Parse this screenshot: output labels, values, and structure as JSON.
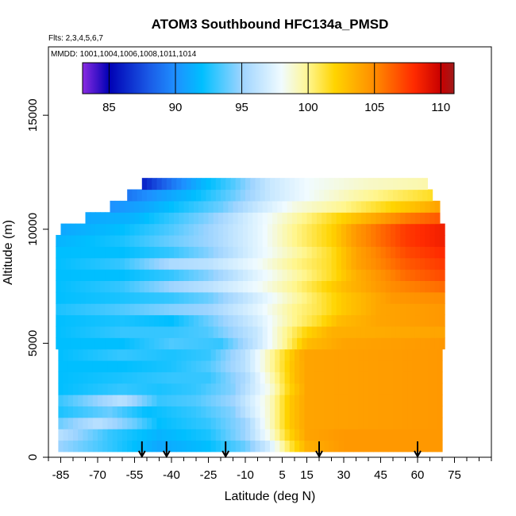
{
  "chart_data": {
    "type": "heatmap",
    "title": "ATOM3 Southbound HFC134a_PMSD",
    "flights_note": "Flts: 2,3,4,5,6,7",
    "dates_note": "MMDD: 1001,1004,1006,1008,1011,1014",
    "xlabel": "Latitude (deg N)",
    "ylabel": "Altitude (m)",
    "xlim": [
      -90,
      90
    ],
    "ylim": [
      0,
      18000
    ],
    "x_ticks": [
      -85,
      -70,
      -55,
      -40,
      -25,
      -10,
      5,
      15,
      30,
      45,
      60,
      75
    ],
    "x_tick_labels": [
      "-85",
      "-70",
      "-55",
      "-40",
      "-25",
      "-10",
      "5",
      "15",
      "30",
      "45",
      "60",
      "75"
    ],
    "y_ticks": [
      0,
      5000,
      10000,
      15000
    ],
    "y_tick_labels": [
      "0",
      "5000",
      "10000",
      "15000"
    ],
    "colorbar": {
      "range": [
        83,
        111
      ],
      "ticks": [
        85,
        90,
        95,
        100,
        105,
        110
      ],
      "tick_labels": [
        "85",
        "90",
        "95",
        "100",
        "105",
        "110"
      ]
    },
    "colors": {
      "stops": [
        [
          83,
          "#8a2be2"
        ],
        [
          85,
          "#0000b4"
        ],
        [
          88,
          "#1a5ae6"
        ],
        [
          90,
          "#1e90ff"
        ],
        [
          92,
          "#00bfff"
        ],
        [
          95,
          "#9ed4ff"
        ],
        [
          98,
          "#f0fbff"
        ],
        [
          100,
          "#fff68f"
        ],
        [
          102,
          "#ffd400"
        ],
        [
          105,
          "#ff8c00"
        ],
        [
          108,
          "#ff2a00"
        ],
        [
          110,
          "#c80000"
        ],
        [
          111,
          "#a01a1a"
        ]
      ]
    },
    "flight_crossings_lat": [
      -52,
      -42,
      -18,
      20,
      60
    ],
    "altitude_bands": [
      {
        "alt": 500,
        "lat": [
          -86,
          70
        ],
        "anchors": [
          [
            -86,
            95
          ],
          [
            -60,
            92.5
          ],
          [
            -45,
            91
          ],
          [
            -25,
            92
          ],
          [
            -10,
            94
          ],
          [
            0,
            97
          ],
          [
            8,
            101
          ],
          [
            15,
            103.5
          ],
          [
            30,
            104.5
          ],
          [
            60,
            104.5
          ],
          [
            70,
            104.5
          ]
        ]
      },
      {
        "alt": 1000,
        "lat": [
          -86,
          70
        ],
        "anchors": [
          [
            -86,
            96
          ],
          [
            -65,
            93
          ],
          [
            -45,
            91.5
          ],
          [
            -25,
            92.5
          ],
          [
            -10,
            95
          ],
          [
            0,
            98.5
          ],
          [
            8,
            102
          ],
          [
            15,
            104
          ],
          [
            30,
            104.5
          ],
          [
            70,
            104.5
          ]
        ]
      },
      {
        "alt": 1500,
        "lat": [
          -86,
          70
        ],
        "anchors": [
          [
            -86,
            94
          ],
          [
            -70,
            96
          ],
          [
            -55,
            94
          ],
          [
            -45,
            92
          ],
          [
            -25,
            93
          ],
          [
            -10,
            95
          ],
          [
            0,
            99
          ],
          [
            8,
            102.5
          ],
          [
            15,
            104
          ],
          [
            70,
            104.5
          ]
        ]
      },
      {
        "alt": 2000,
        "lat": [
          -86,
          70
        ],
        "anchors": [
          [
            -86,
            92.5
          ],
          [
            -65,
            94
          ],
          [
            -50,
            92
          ],
          [
            -30,
            93
          ],
          [
            -15,
            94.5
          ],
          [
            0,
            99
          ],
          [
            8,
            102.5
          ],
          [
            15,
            104
          ],
          [
            70,
            104.5
          ]
        ]
      },
      {
        "alt": 2500,
        "lat": [
          -86,
          70
        ],
        "anchors": [
          [
            -86,
            93
          ],
          [
            -60,
            96
          ],
          [
            -45,
            93
          ],
          [
            -30,
            93.5
          ],
          [
            -15,
            95
          ],
          [
            0,
            99
          ],
          [
            8,
            102.5
          ],
          [
            15,
            104
          ],
          [
            70,
            104.5
          ]
        ]
      },
      {
        "alt": 3000,
        "lat": [
          -86,
          70
        ],
        "anchors": [
          [
            -86,
            92
          ],
          [
            -60,
            93
          ],
          [
            -45,
            92.5
          ],
          [
            -30,
            93
          ],
          [
            -15,
            94.5
          ],
          [
            0,
            98.5
          ],
          [
            8,
            102
          ],
          [
            15,
            104
          ],
          [
            70,
            104.5
          ]
        ]
      },
      {
        "alt": 3500,
        "lat": [
          -86,
          70
        ],
        "anchors": [
          [
            -86,
            92
          ],
          [
            -60,
            92.5
          ],
          [
            -40,
            93
          ],
          [
            -25,
            93
          ],
          [
            -10,
            95.5
          ],
          [
            0,
            99
          ],
          [
            10,
            103
          ],
          [
            15,
            104
          ],
          [
            70,
            104.5
          ]
        ]
      },
      {
        "alt": 4000,
        "lat": [
          -86,
          70
        ],
        "anchors": [
          [
            -86,
            92
          ],
          [
            -60,
            92
          ],
          [
            -40,
            92.5
          ],
          [
            -25,
            93.5
          ],
          [
            -10,
            96
          ],
          [
            0,
            99.5
          ],
          [
            10,
            103
          ],
          [
            15,
            104
          ],
          [
            70,
            104.5
          ]
        ]
      },
      {
        "alt": 4500,
        "lat": [
          -86,
          70
        ],
        "anchors": [
          [
            -86,
            92
          ],
          [
            -60,
            93
          ],
          [
            -40,
            92.5
          ],
          [
            -25,
            93
          ],
          [
            -10,
            96
          ],
          [
            0,
            99.5
          ],
          [
            12,
            103.5
          ],
          [
            15,
            104
          ],
          [
            70,
            104.5
          ]
        ]
      },
      {
        "alt": 5000,
        "lat": [
          -87,
          71
        ],
        "anchors": [
          [
            -87,
            92
          ],
          [
            -60,
            92
          ],
          [
            -40,
            93.5
          ],
          [
            -20,
            93
          ],
          [
            -5,
            96.5
          ],
          [
            5,
            99.5
          ],
          [
            15,
            103
          ],
          [
            30,
            104
          ],
          [
            71,
            104.5
          ]
        ]
      },
      {
        "alt": 5500,
        "lat": [
          -87,
          71
        ],
        "anchors": [
          [
            -87,
            92
          ],
          [
            -60,
            93
          ],
          [
            -40,
            93
          ],
          [
            -25,
            93.5
          ],
          [
            -5,
            96.5
          ],
          [
            5,
            99.5
          ],
          [
            15,
            102
          ],
          [
            25,
            103.5
          ],
          [
            71,
            104
          ]
        ]
      },
      {
        "alt": 6000,
        "lat": [
          -87,
          71
        ],
        "anchors": [
          [
            -87,
            92
          ],
          [
            -60,
            92.5
          ],
          [
            -40,
            92
          ],
          [
            -25,
            94
          ],
          [
            -5,
            97
          ],
          [
            10,
            100
          ],
          [
            20,
            101.5
          ],
          [
            28,
            103
          ],
          [
            45,
            104
          ],
          [
            71,
            104.5
          ]
        ]
      },
      {
        "alt": 6500,
        "lat": [
          -87,
          71
        ],
        "anchors": [
          [
            -87,
            92.5
          ],
          [
            -60,
            93.5
          ],
          [
            -40,
            94.5
          ],
          [
            -25,
            95
          ],
          [
            -5,
            97.5
          ],
          [
            10,
            100
          ],
          [
            20,
            101
          ],
          [
            30,
            102.5
          ],
          [
            45,
            104
          ],
          [
            71,
            104.5
          ]
        ]
      },
      {
        "alt": 7000,
        "lat": [
          -87,
          71
        ],
        "anchors": [
          [
            -87,
            92
          ],
          [
            -60,
            92.5
          ],
          [
            -40,
            93
          ],
          [
            -25,
            94
          ],
          [
            -5,
            97
          ],
          [
            10,
            99.5
          ],
          [
            20,
            101
          ],
          [
            30,
            102.5
          ],
          [
            50,
            104.5
          ],
          [
            71,
            105
          ]
        ]
      },
      {
        "alt": 7500,
        "lat": [
          -87,
          70
        ],
        "anchors": [
          [
            -87,
            92
          ],
          [
            -60,
            93
          ],
          [
            -40,
            95
          ],
          [
            -25,
            96
          ],
          [
            -5,
            98
          ],
          [
            10,
            100
          ],
          [
            20,
            101.5
          ],
          [
            30,
            103
          ],
          [
            50,
            105
          ],
          [
            70,
            106
          ]
        ]
      },
      {
        "alt": 8000,
        "lat": [
          -87,
          70
        ],
        "anchors": [
          [
            -87,
            92
          ],
          [
            -60,
            92
          ],
          [
            -40,
            93
          ],
          [
            -25,
            94.5
          ],
          [
            -5,
            97.5
          ],
          [
            10,
            99.5
          ],
          [
            25,
            101.5
          ],
          [
            35,
            103.5
          ],
          [
            55,
            106
          ],
          [
            70,
            107
          ]
        ]
      },
      {
        "alt": 8500,
        "lat": [
          -87,
          70
        ],
        "anchors": [
          [
            -87,
            92
          ],
          [
            -60,
            93
          ],
          [
            -40,
            95.5
          ],
          [
            -25,
            96
          ],
          [
            -5,
            98
          ],
          [
            10,
            100
          ],
          [
            25,
            101.5
          ],
          [
            35,
            104
          ],
          [
            55,
            106.5
          ],
          [
            70,
            107.5
          ]
        ]
      },
      {
        "alt": 9000,
        "lat": [
          -87,
          70
        ],
        "anchors": [
          [
            -87,
            92
          ],
          [
            -60,
            92
          ],
          [
            -40,
            93
          ],
          [
            -25,
            94.5
          ],
          [
            -5,
            97.5
          ],
          [
            10,
            99.5
          ],
          [
            25,
            101.5
          ],
          [
            35,
            104
          ],
          [
            55,
            107
          ],
          [
            70,
            108
          ]
        ]
      },
      {
        "alt": 9500,
        "lat": [
          -87,
          70
        ],
        "anchors": [
          [
            -87,
            91.5
          ],
          [
            -60,
            92.5
          ],
          [
            -40,
            94
          ],
          [
            -25,
            95
          ],
          [
            -5,
            97.5
          ],
          [
            10,
            100
          ],
          [
            25,
            102
          ],
          [
            35,
            104.5
          ],
          [
            55,
            107.5
          ],
          [
            70,
            108.5
          ]
        ]
      },
      {
        "alt": 10000,
        "lat": [
          -85,
          70
        ],
        "anchors": [
          [
            -85,
            91
          ],
          [
            -60,
            92
          ],
          [
            -40,
            93.5
          ],
          [
            -25,
            95
          ],
          [
            -5,
            97.5
          ],
          [
            10,
            100
          ],
          [
            25,
            102
          ],
          [
            35,
            104.5
          ],
          [
            55,
            107.5
          ],
          [
            70,
            108.5
          ]
        ]
      },
      {
        "alt": 10500,
        "lat": [
          -75,
          68
        ],
        "anchors": [
          [
            -75,
            91
          ],
          [
            -55,
            91.5
          ],
          [
            -40,
            93
          ],
          [
            -25,
            94.5
          ],
          [
            -5,
            97.5
          ],
          [
            10,
            99.5
          ],
          [
            25,
            101.5
          ],
          [
            40,
            103.5
          ],
          [
            55,
            105.5
          ],
          [
            68,
            106.5
          ]
        ]
      },
      {
        "alt": 11000,
        "lat": [
          -65,
          68
        ],
        "anchors": [
          [
            -65,
            90
          ],
          [
            -50,
            91
          ],
          [
            -35,
            92.5
          ],
          [
            -20,
            94
          ],
          [
            -5,
            96.5
          ],
          [
            10,
            98.5
          ],
          [
            30,
            100
          ],
          [
            45,
            101.5
          ],
          [
            60,
            103
          ],
          [
            68,
            104
          ]
        ]
      },
      {
        "alt": 11500,
        "lat": [
          -58,
          66
        ],
        "anchors": [
          [
            -58,
            89
          ],
          [
            -45,
            90.5
          ],
          [
            -30,
            92
          ],
          [
            -15,
            94
          ],
          [
            0,
            96.5
          ],
          [
            15,
            98
          ],
          [
            35,
            99.5
          ],
          [
            50,
            100.5
          ],
          [
            66,
            101.5
          ]
        ]
      },
      {
        "alt": 12000,
        "lat": [
          -52,
          64
        ],
        "anchors": [
          [
            -52,
            86
          ],
          [
            -40,
            89
          ],
          [
            -28,
            91.5
          ],
          [
            -15,
            93.5
          ],
          [
            0,
            96.5
          ],
          [
            15,
            98
          ],
          [
            40,
            99
          ],
          [
            64,
            99.5
          ]
        ]
      }
    ]
  }
}
